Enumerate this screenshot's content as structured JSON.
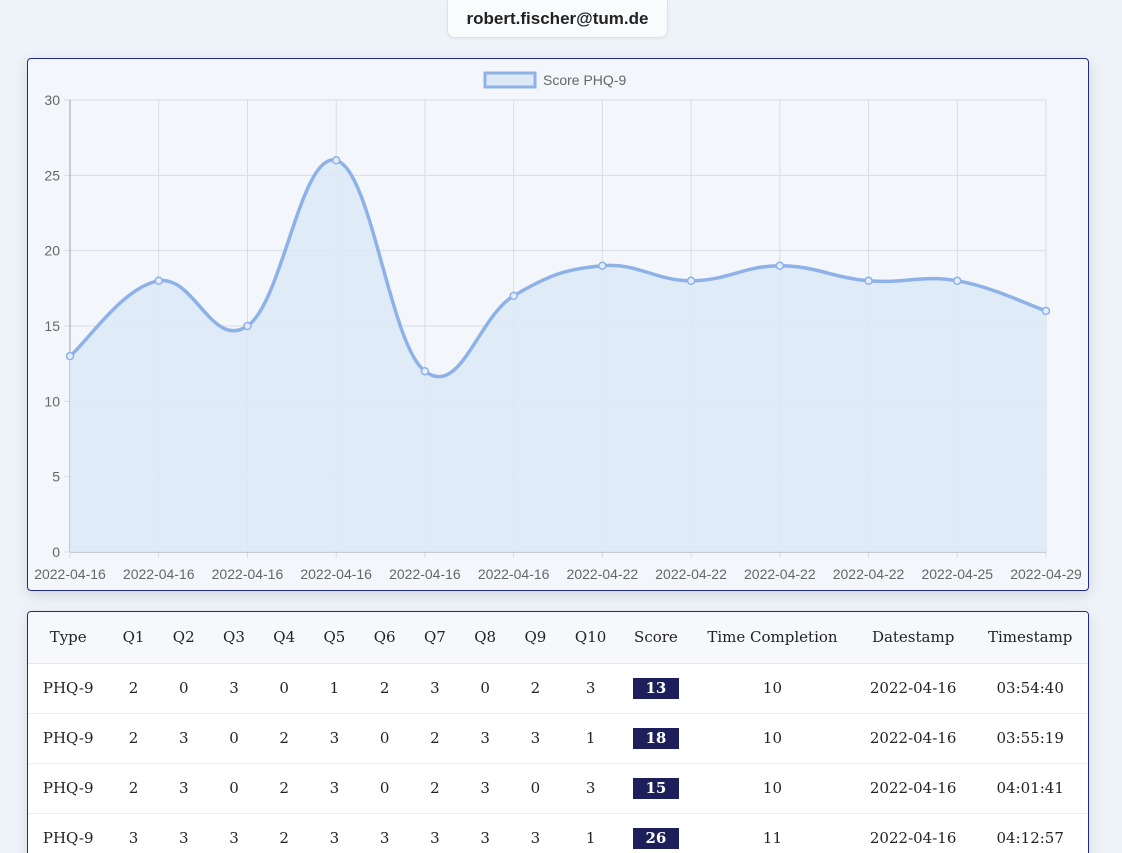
{
  "user": {
    "email": "robert.fischer@tum.de"
  },
  "colors": {
    "line": "#8eb2e8",
    "fill": "#dde9f6",
    "grid": "#d9dde3",
    "badge": "#1c1f5a",
    "border": "#1f2b8c"
  },
  "chart_data": {
    "type": "line",
    "legend": {
      "label": "Score PHQ-9",
      "position": "top-center"
    },
    "categories": [
      "2022-04-16",
      "2022-04-16",
      "2022-04-16",
      "2022-04-16",
      "2022-04-16",
      "2022-04-16",
      "2022-04-22",
      "2022-04-22",
      "2022-04-22",
      "2022-04-22",
      "2022-04-25",
      "2022-04-29"
    ],
    "series": [
      {
        "name": "Score PHQ-9",
        "values": [
          13,
          18,
          15,
          26,
          12,
          17,
          19,
          18,
          19,
          18,
          18,
          16
        ]
      }
    ],
    "ylim": [
      0,
      30
    ],
    "yticks": [
      0,
      5,
      10,
      15,
      20,
      25,
      30
    ],
    "grid": true,
    "smooth": true,
    "filled": true
  },
  "table": {
    "headers": [
      "Type",
      "Q1",
      "Q2",
      "Q3",
      "Q4",
      "Q5",
      "Q6",
      "Q7",
      "Q8",
      "Q9",
      "Q10",
      "Score",
      "Time Completion",
      "Datestamp",
      "Timestamp"
    ],
    "rows": [
      [
        "PHQ-9",
        "2",
        "0",
        "3",
        "0",
        "1",
        "2",
        "3",
        "0",
        "2",
        "3",
        "13",
        "10",
        "2022-04-16",
        "03:54:40"
      ],
      [
        "PHQ-9",
        "2",
        "3",
        "0",
        "2",
        "3",
        "0",
        "2",
        "3",
        "3",
        "1",
        "18",
        "10",
        "2022-04-16",
        "03:55:19"
      ],
      [
        "PHQ-9",
        "2",
        "3",
        "0",
        "2",
        "3",
        "0",
        "2",
        "3",
        "0",
        "3",
        "15",
        "10",
        "2022-04-16",
        "04:01:41"
      ],
      [
        "PHQ-9",
        "3",
        "3",
        "3",
        "2",
        "3",
        "3",
        "3",
        "3",
        "3",
        "1",
        "26",
        "11",
        "2022-04-16",
        "04:12:57"
      ]
    ]
  }
}
